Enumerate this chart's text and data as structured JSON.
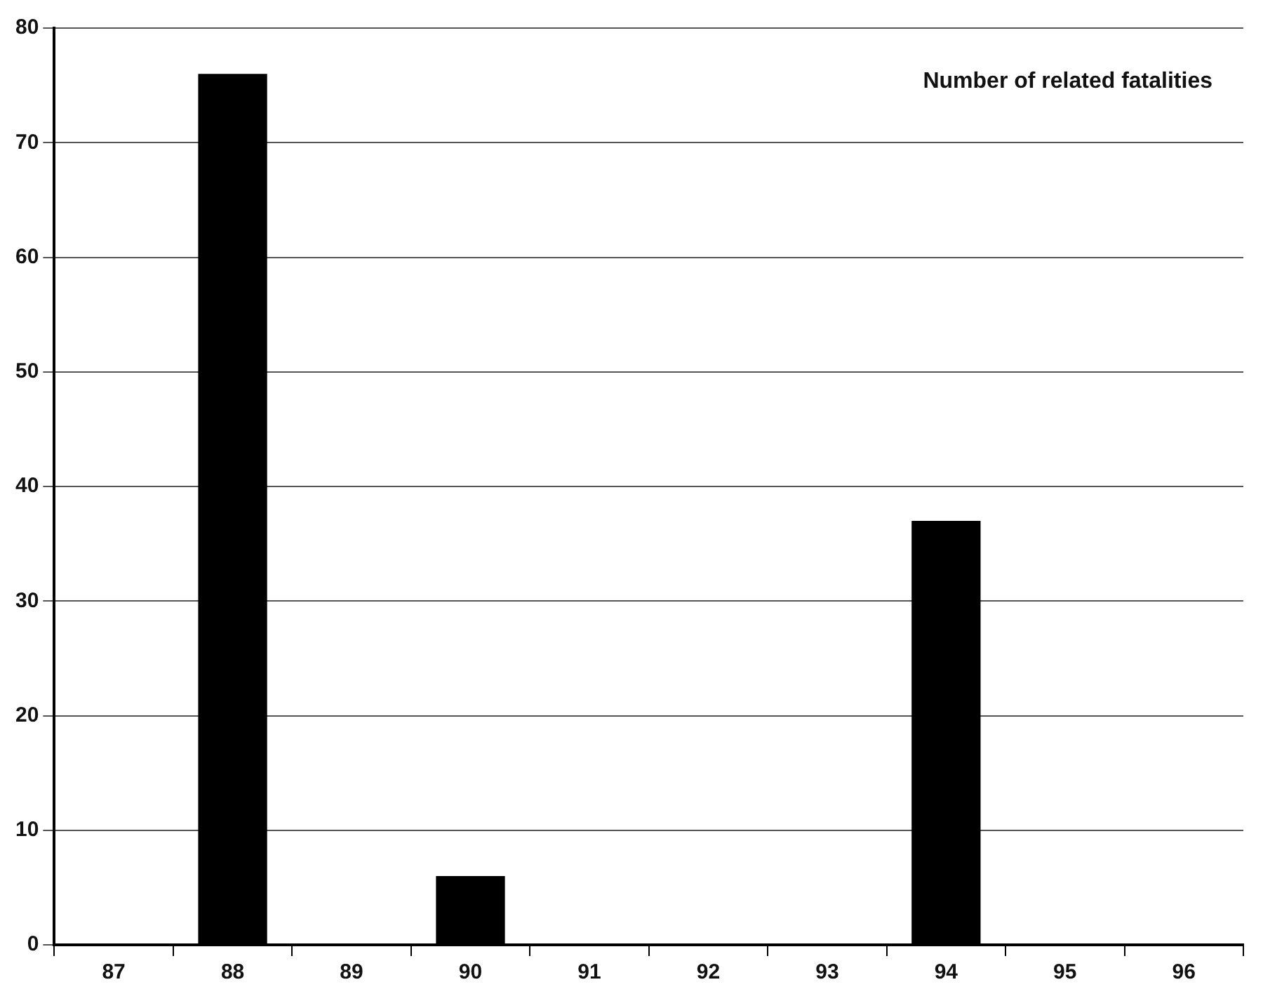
{
  "chart_data": {
    "type": "bar",
    "categories": [
      "87",
      "88",
      "89",
      "90",
      "91",
      "92",
      "93",
      "94",
      "95",
      "96"
    ],
    "values": [
      0,
      76,
      0,
      6,
      0,
      0,
      0,
      37,
      0,
      0
    ],
    "color": "#000000",
    "ylim": [
      0,
      80
    ],
    "yticks": [
      0,
      10,
      20,
      30,
      40,
      50,
      60,
      70,
      80
    ],
    "grid": "y",
    "legend": false,
    "annotations": [
      "Number of related fatalities"
    ]
  }
}
